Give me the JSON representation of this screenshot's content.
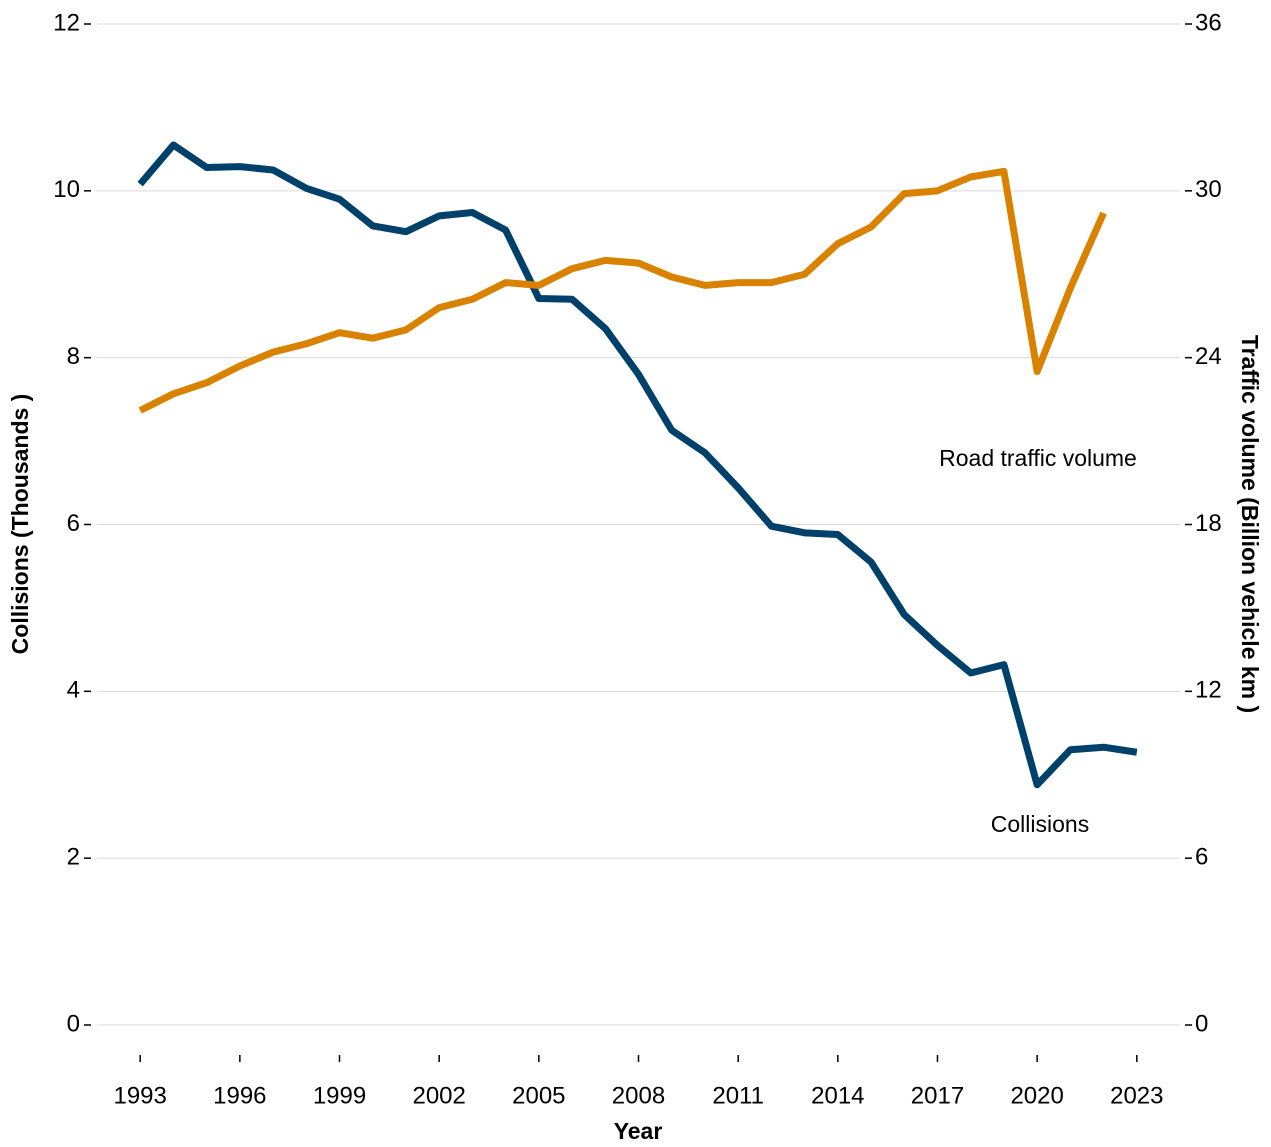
{
  "chart_data": {
    "type": "line",
    "x_label": "Year",
    "y_label": "Collisions (Thousands )",
    "y2_label": "Traffic volume (Billion vehicle km )",
    "annotations": [
      "Road traffic volume",
      "Collisions"
    ],
    "x": [
      1993,
      1994,
      1995,
      1996,
      1997,
      1998,
      1999,
      2000,
      2001,
      2002,
      2003,
      2004,
      2005,
      2006,
      2007,
      2008,
      2009,
      2010,
      2011,
      2012,
      2013,
      2014,
      2015,
      2016,
      2017,
      2018,
      2019,
      2020,
      2021,
      2022,
      2023
    ],
    "series": [
      {
        "name": "Collisions",
        "color": "#00416b",
        "axis": "y",
        "values": [
          10.08,
          10.55,
          10.28,
          10.29,
          10.25,
          10.03,
          9.9,
          9.58,
          9.51,
          9.7,
          9.74,
          9.53,
          8.71,
          8.7,
          8.35,
          7.8,
          7.13,
          6.86,
          6.44,
          5.98,
          5.9,
          5.88,
          5.55,
          4.92,
          4.55,
          4.22,
          4.32,
          2.88,
          3.3,
          3.33,
          3.27
        ]
      },
      {
        "name": "Road traffic volume",
        "color": "#d98200",
        "axis": "y2",
        "values": [
          22.1,
          22.7,
          23.1,
          23.7,
          24.2,
          24.5,
          24.9,
          24.7,
          25.0,
          25.8,
          26.1,
          26.7,
          26.6,
          27.2,
          27.5,
          27.4,
          26.9,
          26.6,
          26.7,
          26.7,
          27.0,
          28.1,
          28.7,
          29.9,
          30.0,
          30.5,
          30.7,
          23.5,
          26.5,
          29.2,
          null
        ]
      }
    ],
    "xlim": [
      1991.7,
      2024.3
    ],
    "xticks": [
      1993,
      1996,
      1999,
      2002,
      2005,
      2008,
      2011,
      2014,
      2017,
      2020,
      2023
    ],
    "ylim": [
      0,
      12
    ],
    "yticks": [
      0,
      2,
      4,
      6,
      8,
      10,
      12
    ],
    "y2lim": [
      0,
      36
    ],
    "y2ticks": [
      0,
      6,
      12,
      18,
      24,
      30,
      36
    ],
    "grid": true
  }
}
